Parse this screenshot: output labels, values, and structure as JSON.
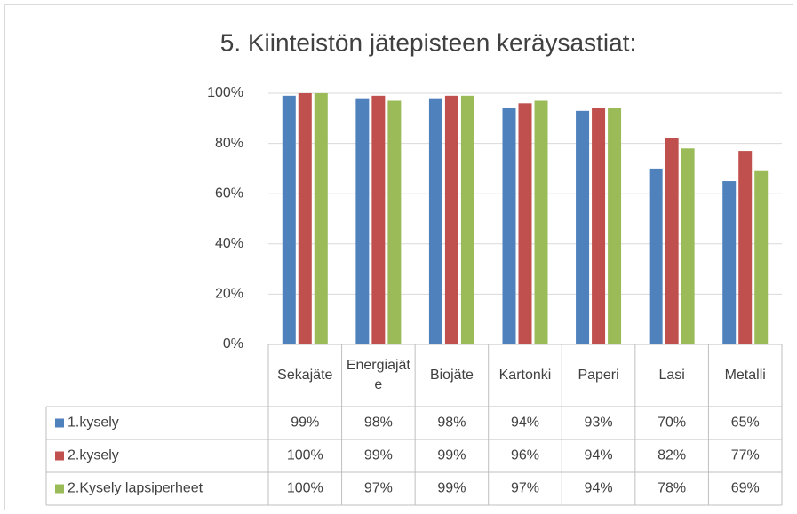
{
  "chart_data": {
    "type": "bar",
    "title": "5. Kiinteistön jätepisteen keräysastiat:",
    "categories": [
      "Sekajäte",
      "Energiajäte",
      "Biojäte",
      "Kartonki",
      "Paperi",
      "Lasi",
      "Metalli"
    ],
    "series": [
      {
        "name": "1.kysely",
        "color": "#4f81bd",
        "values": [
          99,
          98,
          98,
          94,
          93,
          70,
          65
        ],
        "value_labels": [
          "99%",
          "98%",
          "98%",
          "94%",
          "93%",
          "70%",
          "65%"
        ]
      },
      {
        "name": "2.kysely",
        "color": "#c0504d",
        "values": [
          100,
          99,
          99,
          96,
          94,
          82,
          77
        ],
        "value_labels": [
          "100%",
          "99%",
          "99%",
          "96%",
          "94%",
          "82%",
          "77%"
        ]
      },
      {
        "name": "2.Kysely lapsiperheet",
        "color": "#9bbb59",
        "values": [
          100,
          97,
          99,
          97,
          94,
          78,
          69
        ],
        "value_labels": [
          "100%",
          "97%",
          "99%",
          "97%",
          "94%",
          "78%",
          "69%"
        ]
      }
    ],
    "ylim": [
      0,
      100
    ],
    "yticks": [
      {
        "value": 0,
        "label": "0%"
      },
      {
        "value": 20,
        "label": "20%"
      },
      {
        "value": 40,
        "label": "40%"
      },
      {
        "value": 60,
        "label": "60%"
      },
      {
        "value": 80,
        "label": "80%"
      },
      {
        "value": 100,
        "label": "100%"
      }
    ],
    "grid": true
  }
}
